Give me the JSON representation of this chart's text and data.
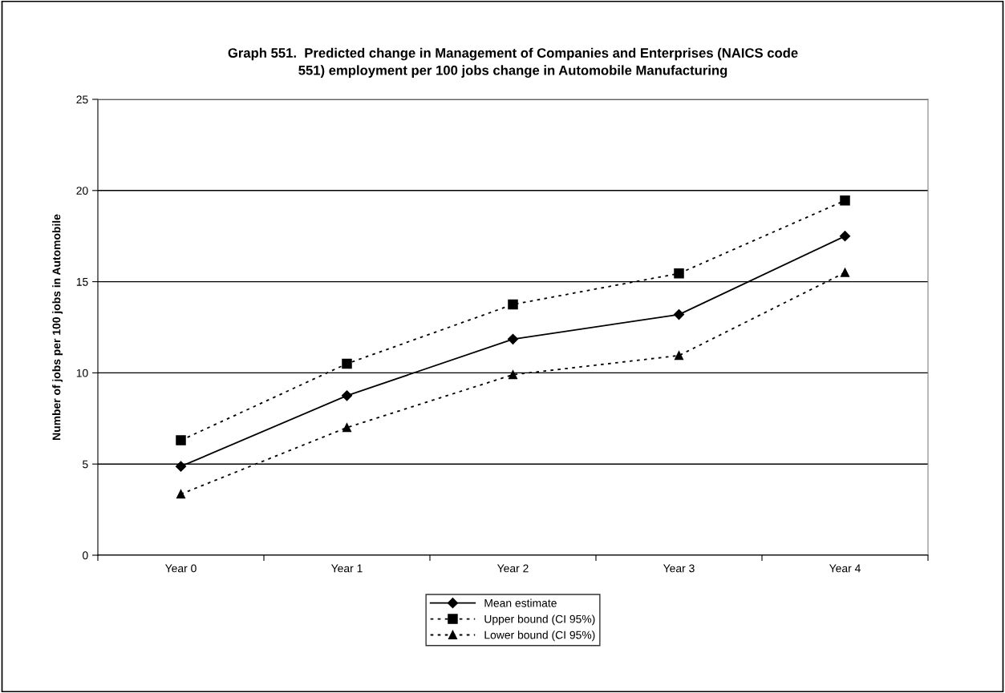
{
  "chart_data": {
    "type": "line",
    "title": "Graph 551.  Predicted change in Management of Companies and Enterprises (NAICS code\n551) employment per 100 jobs change in Automobile Manufacturing",
    "ylabel": "Number of jobs per 100 jobs in Automobile",
    "categories": [
      "Year 0",
      "Year 1",
      "Year 2",
      "Year 3",
      "Year 4"
    ],
    "series": [
      {
        "name": "Mean estimate",
        "color": "#000000",
        "marker": "diamond",
        "line_style": "solid",
        "values": [
          4.87,
          8.75,
          11.85,
          13.2,
          17.5
        ]
      },
      {
        "name": "Upper bound (CI 95%)",
        "color": "#000000",
        "marker": "square",
        "line_style": "dotted",
        "values": [
          6.3,
          10.5,
          13.75,
          15.45,
          19.45
        ]
      },
      {
        "name": "Lower bound (CI 95%)",
        "color": "#000000",
        "marker": "triangle",
        "line_style": "dotted",
        "values": [
          3.35,
          7.0,
          9.9,
          10.95,
          15.5
        ]
      }
    ],
    "ylim": [
      0,
      25
    ],
    "yticks": [
      0,
      5,
      10,
      15,
      20,
      25
    ],
    "grid": "y",
    "legend": "bottom"
  }
}
